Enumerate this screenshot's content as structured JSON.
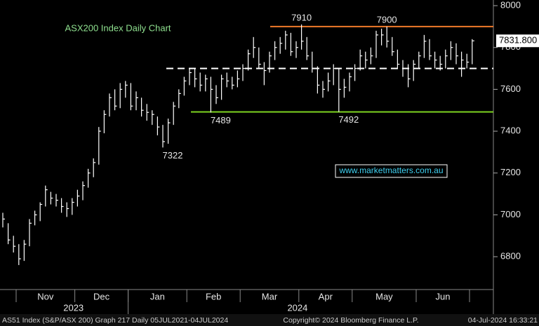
{
  "chart_data": {
    "type": "hlc",
    "title": "ASX200 Index Daily Chart",
    "color": "#ffffff",
    "categories": [
      null,
      null,
      null,
      "Nov",
      "Nov",
      "Nov",
      "Nov",
      "Nov",
      "Nov",
      "Nov",
      "Nov",
      "Nov",
      "Nov",
      "Nov",
      "Dec",
      "Dec",
      "Dec",
      "Dec",
      "Dec",
      "Dec",
      "Dec",
      "Dec",
      "Dec",
      "Dec",
      "Jan",
      "Jan",
      "Jan",
      "Jan",
      "Jan",
      "Jan",
      "Jan",
      "Jan",
      "Jan",
      "Jan",
      "Jan",
      "Feb",
      "Feb",
      "Feb",
      "Feb",
      "Feb",
      "Feb",
      "Feb",
      "Feb",
      "Feb",
      "Feb",
      "Mar",
      "Mar",
      "Mar",
      "Mar",
      "Mar",
      "Mar",
      "Mar",
      "Mar",
      "Mar",
      "Mar",
      "Mar",
      "Apr",
      "Apr",
      "Apr",
      "Apr",
      "Apr",
      "Apr",
      "Apr",
      "Apr",
      "Apr",
      "Apr",
      "May",
      "May",
      "May",
      "May",
      "May",
      "May",
      "May",
      "May",
      "May",
      "May",
      "May",
      "May",
      "Jun",
      "Jun",
      "Jun",
      "Jun",
      "Jun",
      "Jun",
      "Jun",
      "Jun",
      "Jun",
      "Jun",
      null
    ],
    "years": [
      "2023",
      "2024"
    ],
    "close": [
      6980,
      6880,
      6850,
      6790,
      6860,
      6960,
      7000,
      7050,
      7120,
      7080,
      7070,
      7040,
      7030,
      7060,
      7090,
      7140,
      7200,
      7250,
      7400,
      7480,
      7560,
      7520,
      7600,
      7620,
      7520,
      7560,
      7500,
      7490,
      7480,
      7420,
      7350,
      7440,
      7520,
      7580,
      7640,
      7680,
      7650,
      7620,
      7650,
      7600,
      7560,
      7650,
      7640,
      7620,
      7650,
      7700,
      7770,
      7800,
      7720,
      7690,
      7760,
      7800,
      7820,
      7860,
      7780,
      7800,
      7830,
      7760,
      7700,
      7620,
      7600,
      7640,
      7700,
      7600,
      7610,
      7660,
      7700,
      7760,
      7740,
      7760,
      7860,
      7860,
      7830,
      7780,
      7720,
      7700,
      7650,
      7720,
      7760,
      7830,
      7760,
      7740,
      7720,
      7760,
      7800,
      7760,
      7740,
      7730,
      7831.8
    ],
    "high": [
      7010,
      6960,
      6900,
      6860,
      6880,
      6980,
      7020,
      7060,
      7140,
      7110,
      7100,
      7080,
      7060,
      7080,
      7120,
      7160,
      7220,
      7270,
      7420,
      7500,
      7580,
      7600,
      7630,
      7640,
      7630,
      7590,
      7560,
      7530,
      7500,
      7470,
      7430,
      7460,
      7540,
      7600,
      7660,
      7700,
      7700,
      7680,
      7670,
      7660,
      7620,
      7670,
      7680,
      7660,
      7690,
      7720,
      7790,
      7850,
      7800,
      7730,
      7780,
      7830,
      7850,
      7880,
      7870,
      7830,
      7910,
      7850,
      7780,
      7710,
      7640,
      7680,
      7720,
      7700,
      7650,
      7680,
      7720,
      7790,
      7780,
      7800,
      7880,
      7890,
      7900,
      7850,
      7790,
      7740,
      7720,
      7740,
      7780,
      7860,
      7840,
      7780,
      7760,
      7790,
      7830,
      7820,
      7780,
      7770,
      7840
    ],
    "low": [
      6940,
      6860,
      6820,
      6760,
      6780,
      6850,
      6950,
      6970,
      7040,
      7050,
      7040,
      7010,
      6990,
      7000,
      7040,
      7070,
      7130,
      7180,
      7240,
      7390,
      7470,
      7500,
      7510,
      7560,
      7500,
      7500,
      7470,
      7450,
      7430,
      7380,
      7322,
      7340,
      7430,
      7510,
      7570,
      7620,
      7610,
      7590,
      7590,
      7489,
      7530,
      7550,
      7610,
      7600,
      7610,
      7640,
      7690,
      7750,
      7700,
      7620,
      7680,
      7740,
      7770,
      7790,
      7760,
      7750,
      7790,
      7740,
      7680,
      7580,
      7560,
      7590,
      7620,
      7492,
      7560,
      7590,
      7640,
      7690,
      7700,
      7720,
      7750,
      7810,
      7800,
      7760,
      7700,
      7660,
      7610,
      7640,
      7700,
      7750,
      7740,
      7700,
      7690,
      7700,
      7740,
      7720,
      7660,
      7700,
      7720
    ],
    "ylim": [
      6643,
      8027
    ],
    "yticks": [
      6800,
      7000,
      7200,
      7400,
      7600,
      7800,
      8000
    ],
    "annotations": [
      {
        "value": 7910,
        "index": 56,
        "position": "above"
      },
      {
        "value": 7900,
        "index": 72,
        "position": "above"
      },
      {
        "value": 7489,
        "index": 39,
        "position": "below"
      },
      {
        "value": 7492,
        "index": 63,
        "position": "below"
      },
      {
        "value": 7322,
        "index": 30,
        "position": "below"
      }
    ],
    "reference_lines": [
      {
        "value": 7900,
        "color": "#f07a2a",
        "style": "solid"
      },
      {
        "value": 7700,
        "color": "#ffffff",
        "style": "dashed"
      },
      {
        "value": 7492,
        "color": "#7ed321",
        "style": "solid"
      }
    ],
    "last_price": {
      "value": 7831.8,
      "label": "7831.800"
    },
    "watermark": "www.marketmatters.com.au"
  },
  "footer": {
    "left": "AS51 Index (S&P/ASX 200) Graph 217  Daily 05JUL2021-04JUL2024",
    "center": "Copyright© 2024 Bloomberg Finance L.P.",
    "right": "04-Jul-2024 16:33:21"
  }
}
